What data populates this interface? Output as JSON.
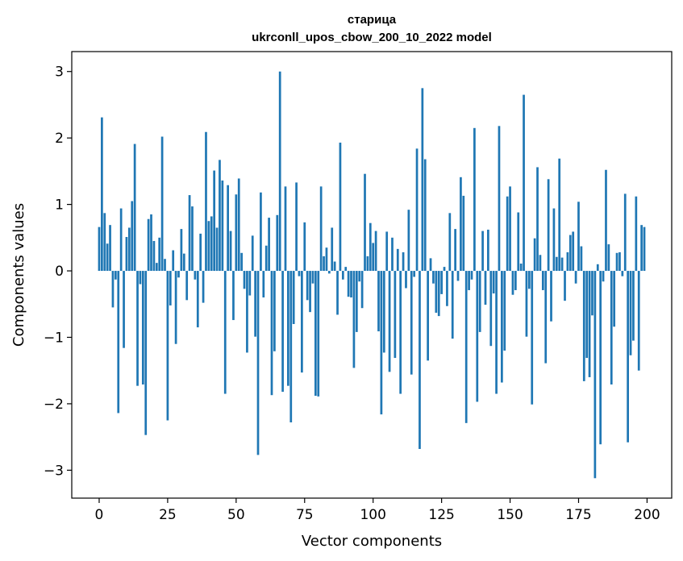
{
  "chart_data": {
    "type": "bar",
    "title": "старица",
    "subtitle": "ukrconll_upos_cbow_200_10_2022 model",
    "xlabel": "Vector components",
    "ylabel": "Components values",
    "xlim": [
      -10,
      209
    ],
    "ylim": [
      -3.42,
      3.3
    ],
    "xticks": [
      0,
      25,
      50,
      75,
      100,
      125,
      150,
      175,
      200
    ],
    "yticks": [
      -3,
      -2,
      -1,
      0,
      1,
      2,
      3
    ],
    "grid": false,
    "legend": "none",
    "bar_color": "#1f77b4",
    "x": [
      0,
      1,
      2,
      3,
      4,
      5,
      6,
      7,
      8,
      9,
      10,
      11,
      12,
      13,
      14,
      15,
      16,
      17,
      18,
      19,
      20,
      21,
      22,
      23,
      24,
      25,
      26,
      27,
      28,
      29,
      30,
      31,
      32,
      33,
      34,
      35,
      36,
      37,
      38,
      39,
      40,
      41,
      42,
      43,
      44,
      45,
      46,
      47,
      48,
      49,
      50,
      51,
      52,
      53,
      54,
      55,
      56,
      57,
      58,
      59,
      60,
      61,
      62,
      63,
      64,
      65,
      66,
      67,
      68,
      69,
      70,
      71,
      72,
      73,
      74,
      75,
      76,
      77,
      78,
      79,
      80,
      81,
      82,
      83,
      84,
      85,
      86,
      87,
      88,
      89,
      90,
      91,
      92,
      93,
      94,
      95,
      96,
      97,
      98,
      99,
      100,
      101,
      102,
      103,
      104,
      105,
      106,
      107,
      108,
      109,
      110,
      111,
      112,
      113,
      114,
      115,
      116,
      117,
      118,
      119,
      120,
      121,
      122,
      123,
      124,
      125,
      126,
      127,
      128,
      129,
      130,
      131,
      132,
      133,
      134,
      135,
      136,
      137,
      138,
      139,
      140,
      141,
      142,
      143,
      144,
      145,
      146,
      147,
      148,
      149,
      150,
      151,
      152,
      153,
      154,
      155,
      156,
      157,
      158,
      159,
      160,
      161,
      162,
      163,
      164,
      165,
      166,
      167,
      168,
      169,
      170,
      171,
      172,
      173,
      174,
      175,
      176,
      177,
      178,
      179,
      180,
      181,
      182,
      183,
      184,
      185,
      186,
      187,
      188,
      189,
      190,
      191,
      192,
      193,
      194,
      195,
      196,
      197,
      198,
      199
    ],
    "values": [
      0.66,
      2.31,
      0.87,
      0.41,
      0.69,
      -0.55,
      -0.13,
      -2.14,
      0.94,
      -1.16,
      0.51,
      0.65,
      1.05,
      1.91,
      -1.73,
      -0.2,
      -1.71,
      -2.47,
      0.78,
      0.85,
      0.45,
      0.12,
      0.5,
      2.02,
      0.18,
      -2.25,
      -0.52,
      0.31,
      -1.1,
      -0.1,
      0.63,
      0.26,
      -0.44,
      1.14,
      0.97,
      -0.13,
      -0.85,
      0.56,
      -0.48,
      2.09,
      0.75,
      0.82,
      1.51,
      0.65,
      1.67,
      1.36,
      -1.85,
      1.29,
      0.6,
      -0.74,
      1.15,
      1.39,
      0.27,
      -0.27,
      -1.23,
      -0.37,
      0.53,
      -0.99,
      -2.77,
      1.18,
      -0.4,
      0.38,
      0.8,
      -1.87,
      -1.21,
      0.84,
      3.0,
      -1.82,
      1.27,
      -1.73,
      -2.28,
      -0.8,
      1.33,
      -0.08,
      -1.53,
      0.73,
      -0.44,
      -0.62,
      -0.19,
      -1.88,
      -1.89,
      1.27,
      0.22,
      0.35,
      -0.04,
      0.65,
      0.14,
      -0.66,
      1.93,
      -0.13,
      0.06,
      -0.39,
      -0.4,
      -1.46,
      -0.92,
      -0.16,
      -0.56,
      1.46,
      0.22,
      0.72,
      0.42,
      0.6,
      -0.91,
      -2.16,
      -1.23,
      0.59,
      -1.52,
      0.5,
      -1.31,
      0.33,
      -1.85,
      0.28,
      -0.26,
      0.92,
      -1.56,
      -0.09,
      1.84,
      -2.68,
      2.75,
      1.68,
      -1.35,
      0.19,
      -0.19,
      -0.63,
      -0.68,
      -0.35,
      0.06,
      -0.53,
      0.87,
      -1.02,
      0.63,
      -0.15,
      1.41,
      1.13,
      -2.29,
      -0.29,
      -0.13,
      2.15,
      -1.97,
      -0.92,
      0.6,
      -0.51,
      0.62,
      -1.13,
      -0.34,
      -1.85,
      2.18,
      -1.68,
      -1.2,
      1.12,
      1.27,
      -0.36,
      -0.29,
      0.88,
      0.11,
      2.65,
      -0.99,
      -0.27,
      -2.01,
      0.49,
      1.56,
      0.24,
      -0.29,
      -1.39,
      1.38,
      -0.76,
      0.94,
      0.21,
      1.69,
      0.2,
      -0.45,
      0.28,
      0.54,
      0.59,
      -0.19,
      1.04,
      0.37,
      -1.66,
      -1.31,
      -1.6,
      -0.67,
      -3.12,
      0.1,
      -2.61,
      -0.16,
      1.52,
      0.4,
      -1.71,
      -0.84,
      0.27,
      0.28,
      -0.08,
      1.16,
      -2.58,
      -1.27,
      -1.05,
      1.12,
      -1.5,
      0.69,
      0.66
    ]
  }
}
